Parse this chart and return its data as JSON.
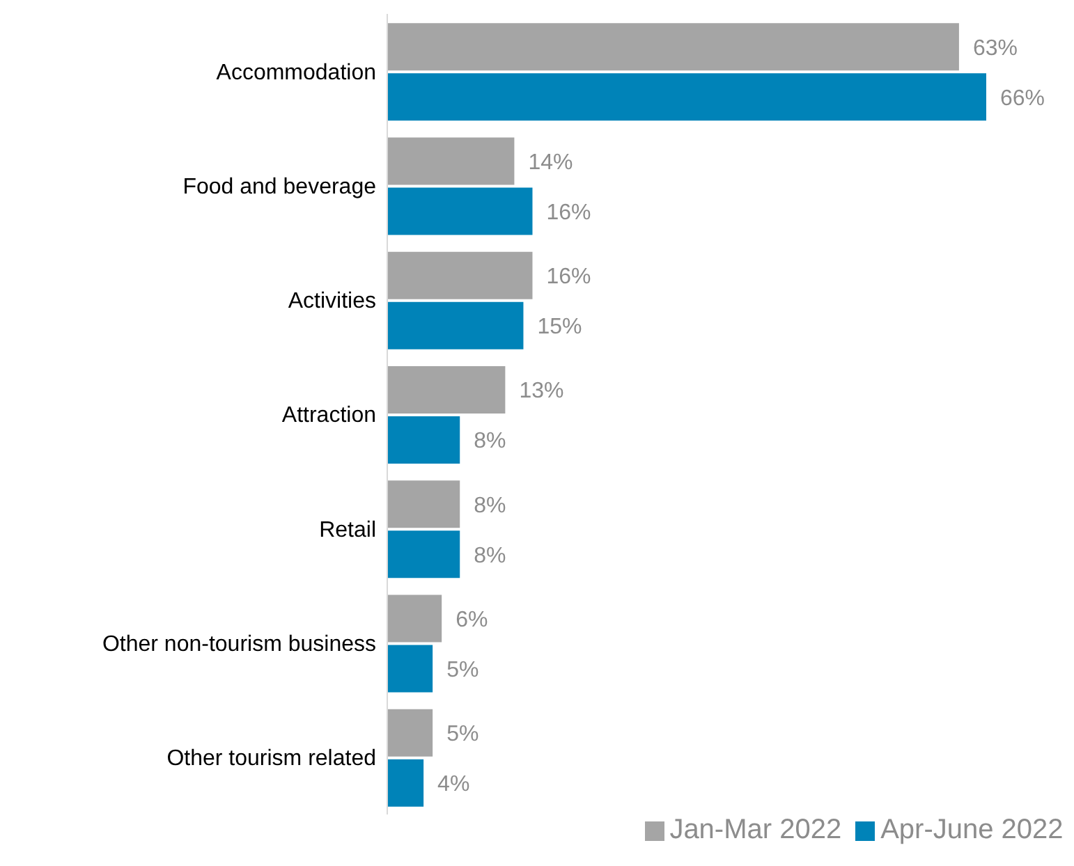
{
  "chart_data": {
    "type": "bar",
    "orientation": "horizontal",
    "categories": [
      "Accommodation",
      "Food and beverage",
      "Activities",
      "Attraction",
      "Retail",
      "Other non-tourism business",
      "Other tourism related"
    ],
    "series": [
      {
        "name": "Jan-Mar 2022",
        "color": "#a5a5a5",
        "values": [
          63,
          14,
          16,
          13,
          8,
          6,
          5
        ],
        "value_labels": [
          "63%",
          "14%",
          "16%",
          "13%",
          "8%",
          "6%",
          "5%"
        ]
      },
      {
        "name": "Apr-June 2022",
        "color": "#0083b8",
        "values": [
          66,
          16,
          15,
          8,
          8,
          5,
          4
        ],
        "value_labels": [
          "66%",
          "16%",
          "15%",
          "8%",
          "8%",
          "5%",
          "4%"
        ]
      }
    ],
    "legend": "bottom",
    "grid": false
  }
}
